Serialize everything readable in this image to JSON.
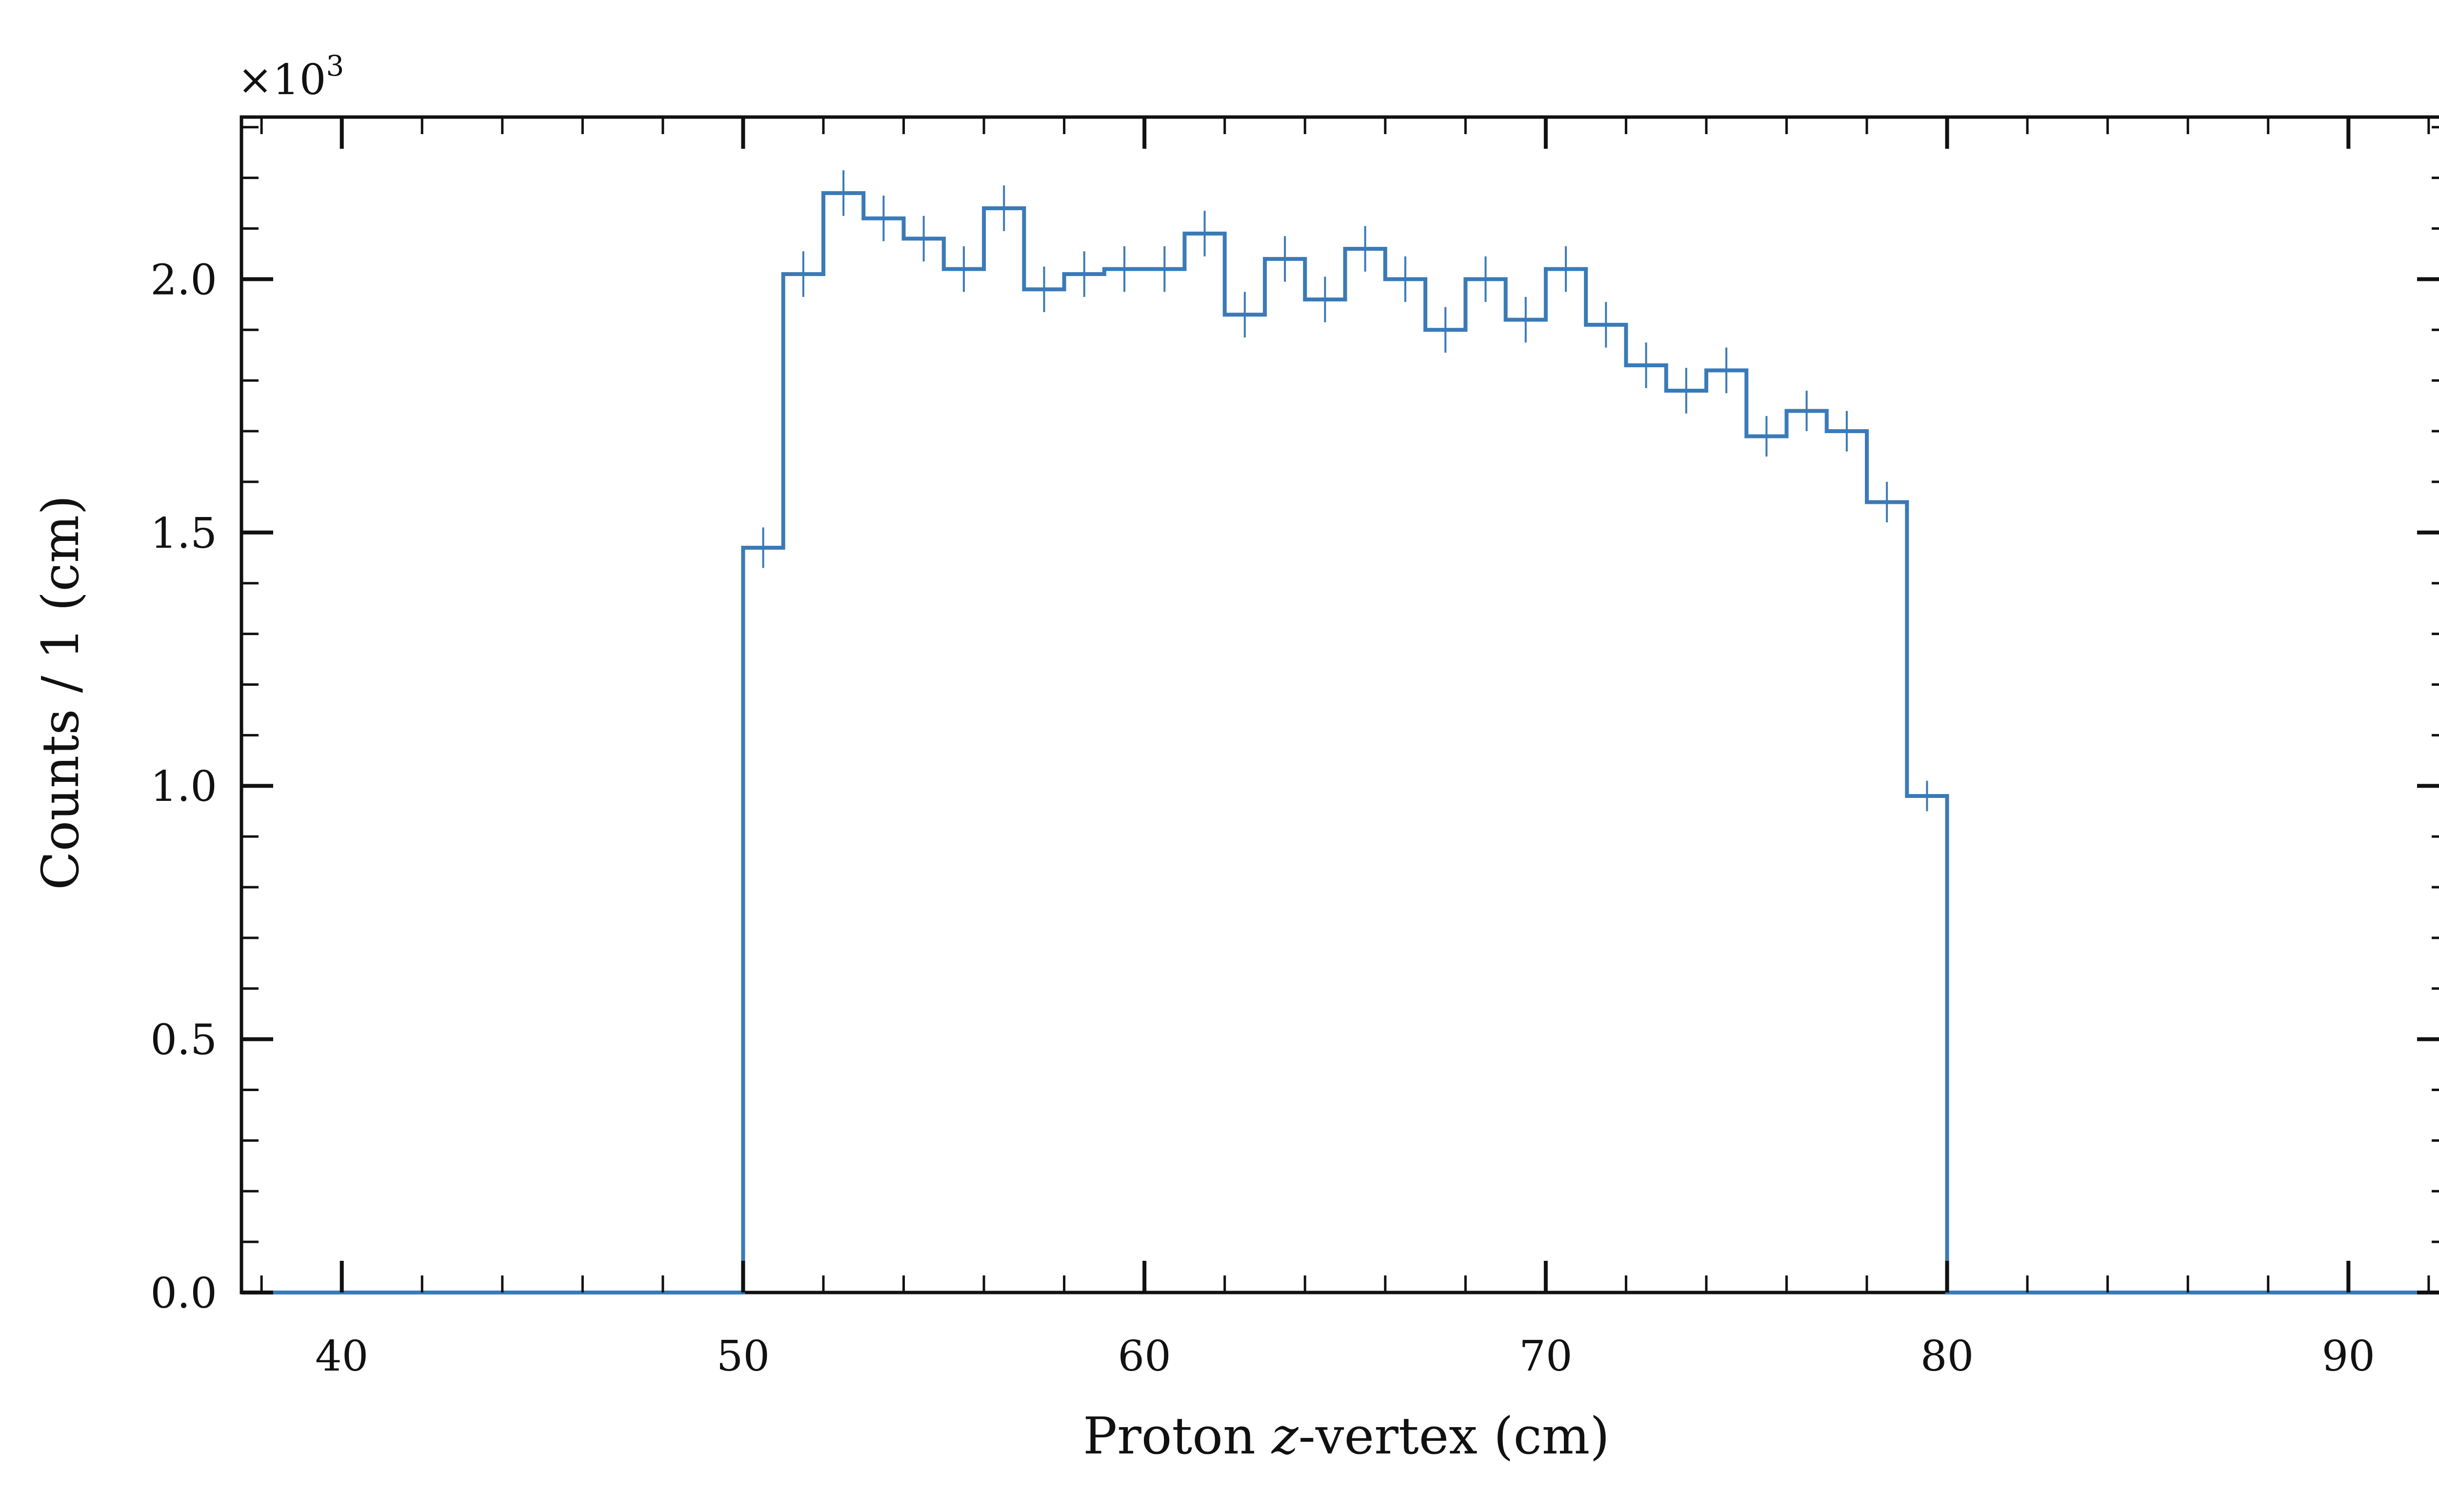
{
  "chart_data": {
    "type": "histogram",
    "xlabel_before": "Proton ",
    "xlabel_italic": "z",
    "xlabel_after": "-vertex (cm)",
    "ylabel": "Counts / 1 (cm)",
    "y_multiplier_base": "×10",
    "y_multiplier_exp": "3",
    "xlim": [
      37.5,
      92.5
    ],
    "ylim": [
      0,
      2.32
    ],
    "x_ticks": [
      40,
      50,
      60,
      70,
      80,
      90
    ],
    "x_tick_labels": [
      "40",
      "50",
      "60",
      "70",
      "80",
      "90"
    ],
    "x_minor_step": 2,
    "y_ticks": [
      0.0,
      0.5,
      1.0,
      1.5,
      2.0
    ],
    "y_tick_labels": [
      "0.0",
      "0.5",
      "1.0",
      "1.5",
      "2.0"
    ],
    "y_minor_step": 0.1,
    "bin_start": 38,
    "bin_width": 1,
    "values": [
      0,
      0,
      0,
      0,
      0,
      0,
      0,
      0,
      0,
      0,
      0,
      0,
      1.47,
      2.01,
      2.17,
      2.12,
      2.08,
      2.02,
      2.14,
      1.98,
      2.01,
      2.02,
      2.02,
      2.09,
      1.93,
      2.04,
      1.96,
      2.06,
      2.0,
      1.9,
      2.0,
      1.92,
      2.02,
      1.91,
      1.83,
      1.78,
      1.82,
      1.69,
      1.74,
      1.7,
      1.56,
      0.98,
      0,
      0,
      0,
      0,
      0,
      0,
      0,
      0,
      0,
      0,
      0,
      0
    ],
    "errors": [
      0,
      0,
      0,
      0,
      0,
      0,
      0,
      0,
      0,
      0,
      0,
      0,
      0.04,
      0.045,
      0.045,
      0.045,
      0.045,
      0.045,
      0.045,
      0.045,
      0.045,
      0.045,
      0.045,
      0.045,
      0.045,
      0.045,
      0.045,
      0.045,
      0.045,
      0.045,
      0.045,
      0.045,
      0.045,
      0.045,
      0.045,
      0.045,
      0.045,
      0.04,
      0.04,
      0.04,
      0.04,
      0.03,
      0,
      0,
      0,
      0,
      0,
      0,
      0,
      0,
      0,
      0,
      0,
      0
    ],
    "line_color": "#3a7ab8",
    "axis_color": "#111111",
    "grid": false,
    "legend": "none"
  }
}
